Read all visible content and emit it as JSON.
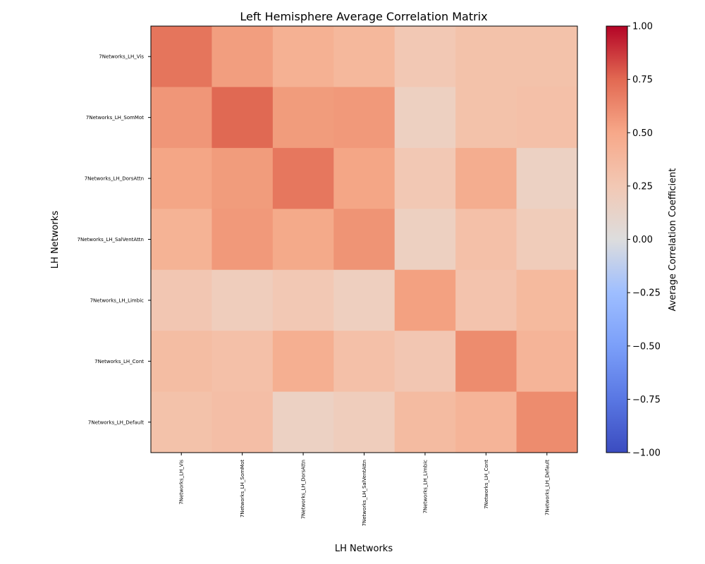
{
  "chart_data": {
    "type": "heatmap",
    "title": "Left Hemisphere Average Correlation Matrix",
    "xlabel": "LH Networks",
    "ylabel": "LH Networks",
    "rows": [
      "7Networks_LH_Vis",
      "7Networks_LH_SomMot",
      "7Networks_LH_DorsAttn",
      "7Networks_LH_SalVentAttn",
      "7Networks_LH_Limbic",
      "7Networks_LH_Cont",
      "7Networks_LH_Default"
    ],
    "columns": [
      "7Networks_LH_Vis",
      "7Networks_LH_SomMot",
      "7Networks_LH_DorsAttn",
      "7Networks_LH_SalVentAttn",
      "7Networks_LH_Limbic",
      "7Networks_LH_Cont",
      "7Networks_LH_Default"
    ],
    "values": [
      [
        0.6,
        0.43,
        0.34,
        0.3,
        0.2,
        0.24,
        0.24
      ],
      [
        0.46,
        0.66,
        0.44,
        0.45,
        0.14,
        0.24,
        0.25
      ],
      [
        0.4,
        0.44,
        0.59,
        0.4,
        0.2,
        0.36,
        0.13
      ],
      [
        0.33,
        0.45,
        0.38,
        0.47,
        0.14,
        0.25,
        0.17
      ],
      [
        0.21,
        0.16,
        0.2,
        0.15,
        0.42,
        0.23,
        0.29
      ],
      [
        0.27,
        0.25,
        0.35,
        0.25,
        0.21,
        0.5,
        0.32
      ],
      [
        0.24,
        0.26,
        0.13,
        0.16,
        0.28,
        0.32,
        0.5
      ]
    ],
    "colorbar": {
      "label": "Average Correlation Coefficient",
      "vmin": -1.0,
      "vmax": 1.0,
      "ticks": [
        "1.00",
        "0.75",
        "0.50",
        "0.25",
        "0.00",
        "−0.25",
        "−0.50",
        "−0.75",
        "−1.00"
      ],
      "tick_values": [
        1.0,
        0.75,
        0.5,
        0.25,
        0.0,
        -0.25,
        -0.5,
        -0.75,
        -1.0
      ],
      "colormap": "coolwarm"
    },
    "grid": false
  }
}
